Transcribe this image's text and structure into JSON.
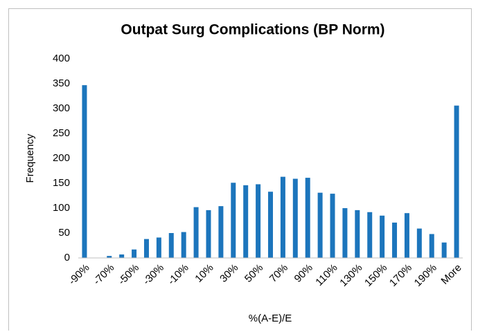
{
  "chart_data": {
    "type": "bar",
    "title": "Outpat Surg Complications (BP Norm)",
    "x_label": "%(A-E)/E",
    "y_label": "Frequency",
    "categories": [
      "-90%",
      null,
      "-70%",
      null,
      "-50%",
      null,
      "-30%",
      null,
      "-10%",
      null,
      "10%",
      null,
      "30%",
      null,
      "50%",
      null,
      "70%",
      null,
      "90%",
      null,
      "110%",
      null,
      "130%",
      null,
      "150%",
      null,
      "170%",
      null,
      "190%",
      null,
      "More"
    ],
    "values": [
      347,
      0,
      4,
      7,
      17,
      38,
      41,
      50,
      52,
      102,
      96,
      104,
      151,
      146,
      148,
      133,
      163,
      159,
      161,
      131,
      129,
      100,
      96,
      92,
      85,
      71,
      90,
      59,
      48,
      31,
      306
    ],
    "color": "#1c75bc",
    "ylim": [
      0,
      400
    ],
    "yticks": [
      0,
      50,
      100,
      150,
      200,
      250,
      300,
      350,
      400
    ],
    "grid": false
  }
}
